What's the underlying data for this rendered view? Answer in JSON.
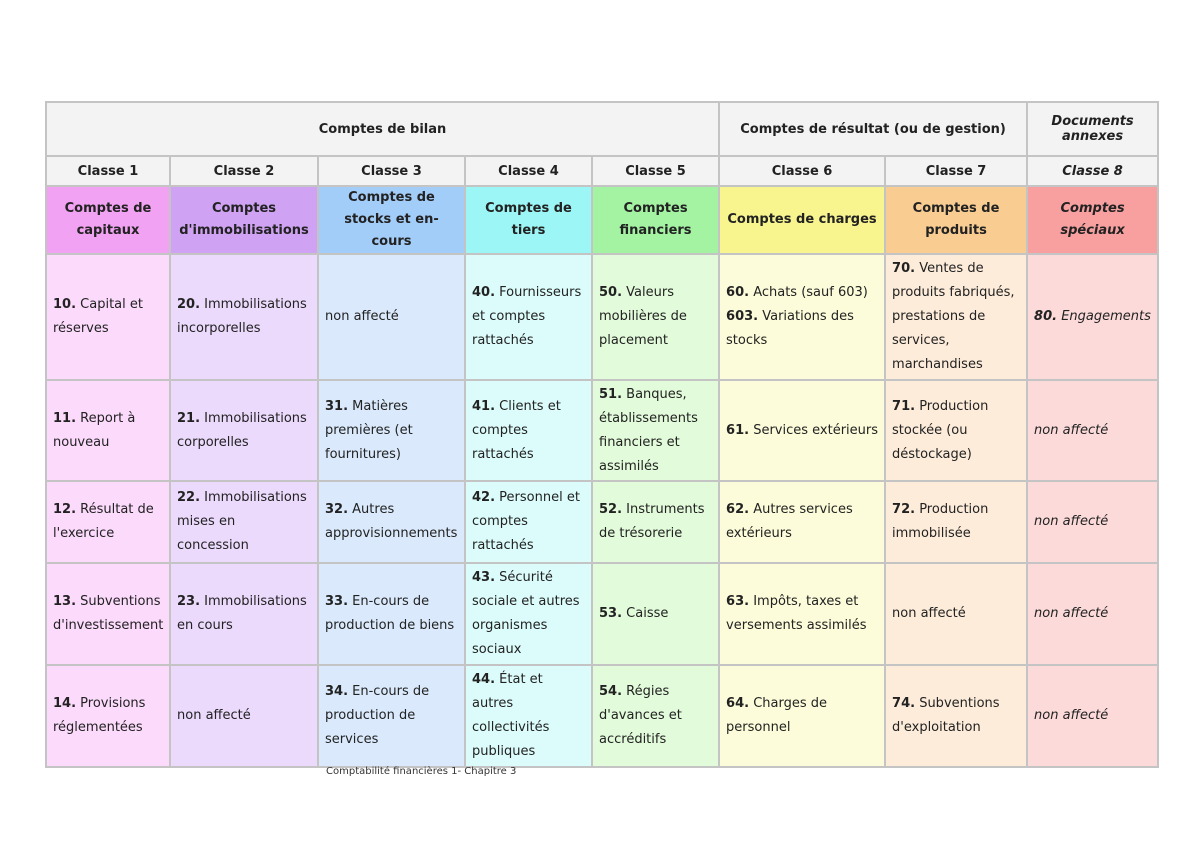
{
  "groups": {
    "bilan": "Comptes de bilan",
    "resultat": "Comptes de résultat (ou de gestion)",
    "annexes": "Documents annexes"
  },
  "classes": [
    "Classe 1",
    "Classe 2",
    "Classe 3",
    "Classe 4",
    "Classe 5",
    "Classe 6",
    "Classe 7",
    "Classe 8"
  ],
  "titles": [
    {
      "text": "Comptes de capitaux",
      "color": "#f2a2f2"
    },
    {
      "text": "Comptes d'immobilisations",
      "color": "#d0a2f4"
    },
    {
      "text": "Comptes de stocks et en-cours",
      "color": "#a3cdf9"
    },
    {
      "text": "Comptes de tiers",
      "color": "#9cf6f6"
    },
    {
      "text": "Comptes financiers",
      "color": "#a3f3a3"
    },
    {
      "text": "Comptes de charges",
      "color": "#f8f58f"
    },
    {
      "text": "Comptes de produits",
      "color": "#f9cd92"
    },
    {
      "text": "Comptes spéciaux",
      "color": "#f8a0a0"
    }
  ],
  "body_colors": [
    "#fcdafc",
    "#ebdafc",
    "#daeafc",
    "#dcfcfc",
    "#e2fbda",
    "#fcfcda",
    "#fdecda",
    "#fcdada"
  ],
  "rows": [
    [
      {
        "num": "10.",
        "text": " Capital et réserves"
      },
      {
        "num": "20.",
        "text": " Immobilisations incorporelles"
      },
      {
        "num": "",
        "text": "non affecté"
      },
      {
        "num": "40.",
        "text": " Fournisseurs et comptes rattachés"
      },
      {
        "num": "50.",
        "text": " Valeurs mobilières de placement"
      },
      {
        "num": "60.",
        "text": " Achats (sauf 603)",
        "num2": "603.",
        "text2": " Variations des stocks"
      },
      {
        "num": "70.",
        "text": " Ventes de produits fabriqués, prestations de services, marchandises"
      },
      {
        "num": "80.",
        "text": " Engagements",
        "italic": true
      }
    ],
    [
      {
        "num": "11.",
        "text": " Report à nouveau"
      },
      {
        "num": "21.",
        "text": " Immobilisations corporelles"
      },
      {
        "num": "31.",
        "text": " Matières premières (et fournitures)"
      },
      {
        "num": "41.",
        "text": " Clients et comptes rattachés"
      },
      {
        "num": "51.",
        "text": " Banques, établissements financiers et assimilés"
      },
      {
        "num": "61.",
        "text": " Services extérieurs"
      },
      {
        "num": "71.",
        "text": " Production stockée (ou déstockage)"
      },
      {
        "num": "",
        "text": "non affecté",
        "italic": true
      }
    ],
    [
      {
        "num": "12.",
        "text": " Résultat de l'exercice"
      },
      {
        "num": "22.",
        "text": " Immobilisations mises en concession"
      },
      {
        "num": "32.",
        "text": " Autres approvisionnements"
      },
      {
        "num": "42.",
        "text": " Personnel et comptes rattachés"
      },
      {
        "num": "52.",
        "text": " Instruments de trésorerie"
      },
      {
        "num": "62.",
        "text": " Autres services extérieurs"
      },
      {
        "num": "72.",
        "text": " Production immobilisée"
      },
      {
        "num": "",
        "text": "non affecté",
        "italic": true
      }
    ],
    [
      {
        "num": "13.",
        "text": " Subventions d'investissement"
      },
      {
        "num": "23.",
        "text": " Immobilisations en cours"
      },
      {
        "num": "33.",
        "text": " En-cours de production de biens"
      },
      {
        "num": "43.",
        "text": " Sécurité sociale et autres organismes sociaux"
      },
      {
        "num": "53.",
        "text": " Caisse"
      },
      {
        "num": "63.",
        "text": " Impôts, taxes et versements assimilés"
      },
      {
        "num": "",
        "text": "non affecté"
      },
      {
        "num": "",
        "text": "non affecté",
        "italic": true
      }
    ],
    [
      {
        "num": "14.",
        "text": " Provisions réglementées"
      },
      {
        "num": "",
        "text": "non affecté"
      },
      {
        "num": "34.",
        "text": " En-cours de production de services"
      },
      {
        "num": "44.",
        "text": " État et autres collectivités publiques"
      },
      {
        "num": "54.",
        "text": " Régies d'avances et accréditifs"
      },
      {
        "num": "64.",
        "text": " Charges de personnel"
      },
      {
        "num": "74.",
        "text": " Subventions d'exploitation"
      },
      {
        "num": "",
        "text": "non affecté",
        "italic": true
      }
    ]
  ],
  "footer": "Comptabilité financières 1- Chapitre 3"
}
